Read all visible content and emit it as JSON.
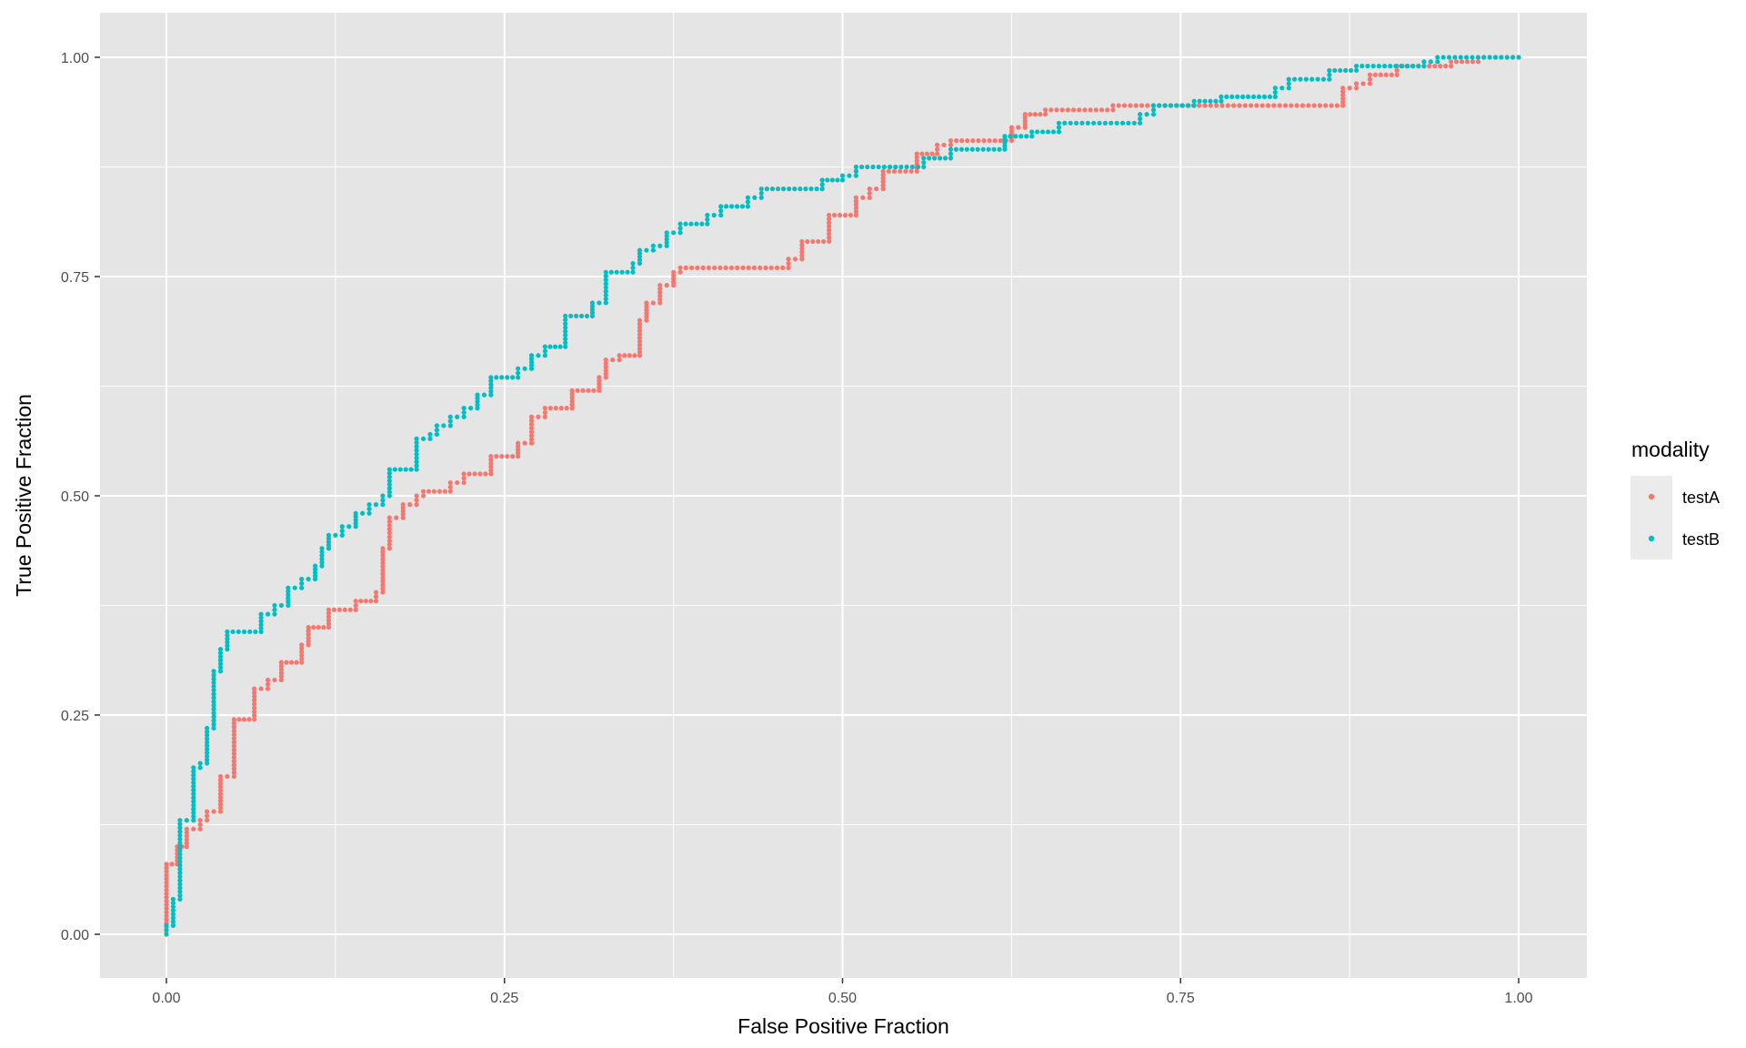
{
  "chart_data": {
    "type": "scatter",
    "xlabel": "False Positive Fraction",
    "ylabel": "True Positive Fraction",
    "xlim": [
      -0.05,
      1.05
    ],
    "ylim": [
      -0.05,
      1.05
    ],
    "x_ticks": [
      "0.00",
      "0.25",
      "0.50",
      "0.75",
      "1.00"
    ],
    "y_ticks": [
      "0.00",
      "0.25",
      "0.50",
      "0.75",
      "1.00"
    ],
    "grid": true,
    "legend": {
      "title": "modality",
      "position": "right"
    },
    "colors": {
      "panel": "#e5e5e5",
      "grid": "#ffffff",
      "testA": "#f8766d",
      "testB": "#00bfc4"
    },
    "series": [
      {
        "name": "testA",
        "points": [
          [
            0.0,
            0.0
          ],
          [
            0.0,
            0.08
          ],
          [
            0.008,
            0.08
          ],
          [
            0.008,
            0.1
          ],
          [
            0.015,
            0.1
          ],
          [
            0.015,
            0.12
          ],
          [
            0.025,
            0.12
          ],
          [
            0.025,
            0.13
          ],
          [
            0.03,
            0.13
          ],
          [
            0.03,
            0.14
          ],
          [
            0.04,
            0.14
          ],
          [
            0.04,
            0.18
          ],
          [
            0.05,
            0.18
          ],
          [
            0.05,
            0.245
          ],
          [
            0.065,
            0.245
          ],
          [
            0.065,
            0.28
          ],
          [
            0.075,
            0.28
          ],
          [
            0.075,
            0.29
          ],
          [
            0.085,
            0.29
          ],
          [
            0.085,
            0.31
          ],
          [
            0.1,
            0.31
          ],
          [
            0.1,
            0.33
          ],
          [
            0.105,
            0.33
          ],
          [
            0.105,
            0.35
          ],
          [
            0.12,
            0.35
          ],
          [
            0.12,
            0.37
          ],
          [
            0.14,
            0.37
          ],
          [
            0.14,
            0.38
          ],
          [
            0.155,
            0.38
          ],
          [
            0.155,
            0.39
          ],
          [
            0.16,
            0.39
          ],
          [
            0.16,
            0.44
          ],
          [
            0.165,
            0.44
          ],
          [
            0.165,
            0.475
          ],
          [
            0.175,
            0.475
          ],
          [
            0.175,
            0.49
          ],
          [
            0.185,
            0.49
          ],
          [
            0.185,
            0.5
          ],
          [
            0.19,
            0.5
          ],
          [
            0.19,
            0.505
          ],
          [
            0.21,
            0.505
          ],
          [
            0.21,
            0.515
          ],
          [
            0.22,
            0.515
          ],
          [
            0.22,
            0.525
          ],
          [
            0.24,
            0.525
          ],
          [
            0.24,
            0.545
          ],
          [
            0.26,
            0.545
          ],
          [
            0.26,
            0.56
          ],
          [
            0.27,
            0.56
          ],
          [
            0.27,
            0.59
          ],
          [
            0.28,
            0.59
          ],
          [
            0.28,
            0.6
          ],
          [
            0.3,
            0.6
          ],
          [
            0.3,
            0.62
          ],
          [
            0.32,
            0.62
          ],
          [
            0.32,
            0.635
          ],
          [
            0.325,
            0.635
          ],
          [
            0.325,
            0.655
          ],
          [
            0.335,
            0.655
          ],
          [
            0.335,
            0.66
          ],
          [
            0.35,
            0.66
          ],
          [
            0.35,
            0.7
          ],
          [
            0.355,
            0.7
          ],
          [
            0.355,
            0.72
          ],
          [
            0.365,
            0.72
          ],
          [
            0.365,
            0.74
          ],
          [
            0.375,
            0.74
          ],
          [
            0.375,
            0.755
          ],
          [
            0.38,
            0.755
          ],
          [
            0.38,
            0.76
          ],
          [
            0.46,
            0.76
          ],
          [
            0.46,
            0.77
          ],
          [
            0.47,
            0.77
          ],
          [
            0.47,
            0.79
          ],
          [
            0.49,
            0.79
          ],
          [
            0.49,
            0.82
          ],
          [
            0.51,
            0.82
          ],
          [
            0.51,
            0.84
          ],
          [
            0.52,
            0.84
          ],
          [
            0.52,
            0.85
          ],
          [
            0.53,
            0.85
          ],
          [
            0.53,
            0.87
          ],
          [
            0.555,
            0.87
          ],
          [
            0.555,
            0.89
          ],
          [
            0.57,
            0.89
          ],
          [
            0.57,
            0.9
          ],
          [
            0.58,
            0.9
          ],
          [
            0.58,
            0.905
          ],
          [
            0.625,
            0.905
          ],
          [
            0.625,
            0.92
          ],
          [
            0.635,
            0.92
          ],
          [
            0.635,
            0.935
          ],
          [
            0.65,
            0.935
          ],
          [
            0.65,
            0.94
          ],
          [
            0.7,
            0.94
          ],
          [
            0.7,
            0.945
          ],
          [
            0.87,
            0.945
          ],
          [
            0.87,
            0.965
          ],
          [
            0.88,
            0.965
          ],
          [
            0.88,
            0.97
          ],
          [
            0.89,
            0.97
          ],
          [
            0.89,
            0.98
          ],
          [
            0.91,
            0.98
          ],
          [
            0.91,
            0.99
          ],
          [
            0.95,
            0.99
          ],
          [
            0.95,
            0.995
          ],
          [
            0.97,
            0.995
          ],
          [
            0.97,
            1.0
          ],
          [
            1.0,
            1.0
          ]
        ]
      },
      {
        "name": "testB",
        "points": [
          [
            0.0,
            0.0
          ],
          [
            0.0,
            0.01
          ],
          [
            0.005,
            0.01
          ],
          [
            0.005,
            0.04
          ],
          [
            0.01,
            0.04
          ],
          [
            0.01,
            0.13
          ],
          [
            0.02,
            0.13
          ],
          [
            0.02,
            0.19
          ],
          [
            0.025,
            0.19
          ],
          [
            0.025,
            0.195
          ],
          [
            0.03,
            0.195
          ],
          [
            0.03,
            0.235
          ],
          [
            0.035,
            0.235
          ],
          [
            0.035,
            0.3
          ],
          [
            0.04,
            0.3
          ],
          [
            0.04,
            0.325
          ],
          [
            0.045,
            0.325
          ],
          [
            0.045,
            0.345
          ],
          [
            0.07,
            0.345
          ],
          [
            0.07,
            0.365
          ],
          [
            0.08,
            0.365
          ],
          [
            0.08,
            0.375
          ],
          [
            0.09,
            0.375
          ],
          [
            0.09,
            0.395
          ],
          [
            0.1,
            0.395
          ],
          [
            0.1,
            0.405
          ],
          [
            0.11,
            0.405
          ],
          [
            0.11,
            0.42
          ],
          [
            0.115,
            0.42
          ],
          [
            0.115,
            0.44
          ],
          [
            0.12,
            0.44
          ],
          [
            0.12,
            0.455
          ],
          [
            0.13,
            0.455
          ],
          [
            0.13,
            0.465
          ],
          [
            0.14,
            0.465
          ],
          [
            0.14,
            0.48
          ],
          [
            0.15,
            0.48
          ],
          [
            0.15,
            0.49
          ],
          [
            0.16,
            0.49
          ],
          [
            0.16,
            0.5
          ],
          [
            0.165,
            0.5
          ],
          [
            0.165,
            0.53
          ],
          [
            0.185,
            0.53
          ],
          [
            0.185,
            0.565
          ],
          [
            0.195,
            0.565
          ],
          [
            0.195,
            0.57
          ],
          [
            0.2,
            0.57
          ],
          [
            0.2,
            0.58
          ],
          [
            0.21,
            0.58
          ],
          [
            0.21,
            0.59
          ],
          [
            0.22,
            0.59
          ],
          [
            0.22,
            0.6
          ],
          [
            0.23,
            0.6
          ],
          [
            0.23,
            0.615
          ],
          [
            0.24,
            0.615
          ],
          [
            0.24,
            0.635
          ],
          [
            0.26,
            0.635
          ],
          [
            0.26,
            0.645
          ],
          [
            0.27,
            0.645
          ],
          [
            0.27,
            0.66
          ],
          [
            0.28,
            0.66
          ],
          [
            0.28,
            0.67
          ],
          [
            0.295,
            0.67
          ],
          [
            0.295,
            0.705
          ],
          [
            0.315,
            0.705
          ],
          [
            0.315,
            0.72
          ],
          [
            0.325,
            0.72
          ],
          [
            0.325,
            0.755
          ],
          [
            0.345,
            0.755
          ],
          [
            0.345,
            0.765
          ],
          [
            0.35,
            0.765
          ],
          [
            0.35,
            0.78
          ],
          [
            0.36,
            0.78
          ],
          [
            0.36,
            0.785
          ],
          [
            0.37,
            0.785
          ],
          [
            0.37,
            0.8
          ],
          [
            0.38,
            0.8
          ],
          [
            0.38,
            0.81
          ],
          [
            0.4,
            0.81
          ],
          [
            0.4,
            0.82
          ],
          [
            0.41,
            0.82
          ],
          [
            0.41,
            0.83
          ],
          [
            0.43,
            0.83
          ],
          [
            0.43,
            0.84
          ],
          [
            0.44,
            0.84
          ],
          [
            0.44,
            0.85
          ],
          [
            0.485,
            0.85
          ],
          [
            0.485,
            0.86
          ],
          [
            0.5,
            0.86
          ],
          [
            0.5,
            0.865
          ],
          [
            0.51,
            0.865
          ],
          [
            0.51,
            0.875
          ],
          [
            0.56,
            0.875
          ],
          [
            0.56,
            0.885
          ],
          [
            0.58,
            0.885
          ],
          [
            0.58,
            0.895
          ],
          [
            0.62,
            0.895
          ],
          [
            0.62,
            0.91
          ],
          [
            0.64,
            0.91
          ],
          [
            0.64,
            0.915
          ],
          [
            0.66,
            0.915
          ],
          [
            0.66,
            0.925
          ],
          [
            0.72,
            0.925
          ],
          [
            0.72,
            0.935
          ],
          [
            0.73,
            0.935
          ],
          [
            0.73,
            0.945
          ],
          [
            0.76,
            0.945
          ],
          [
            0.76,
            0.95
          ],
          [
            0.78,
            0.95
          ],
          [
            0.78,
            0.955
          ],
          [
            0.82,
            0.955
          ],
          [
            0.82,
            0.965
          ],
          [
            0.83,
            0.965
          ],
          [
            0.83,
            0.975
          ],
          [
            0.86,
            0.975
          ],
          [
            0.86,
            0.985
          ],
          [
            0.88,
            0.985
          ],
          [
            0.88,
            0.99
          ],
          [
            0.93,
            0.99
          ],
          [
            0.93,
            0.995
          ],
          [
            0.94,
            0.995
          ],
          [
            0.94,
            1.0
          ],
          [
            1.0,
            1.0
          ]
        ]
      }
    ]
  }
}
